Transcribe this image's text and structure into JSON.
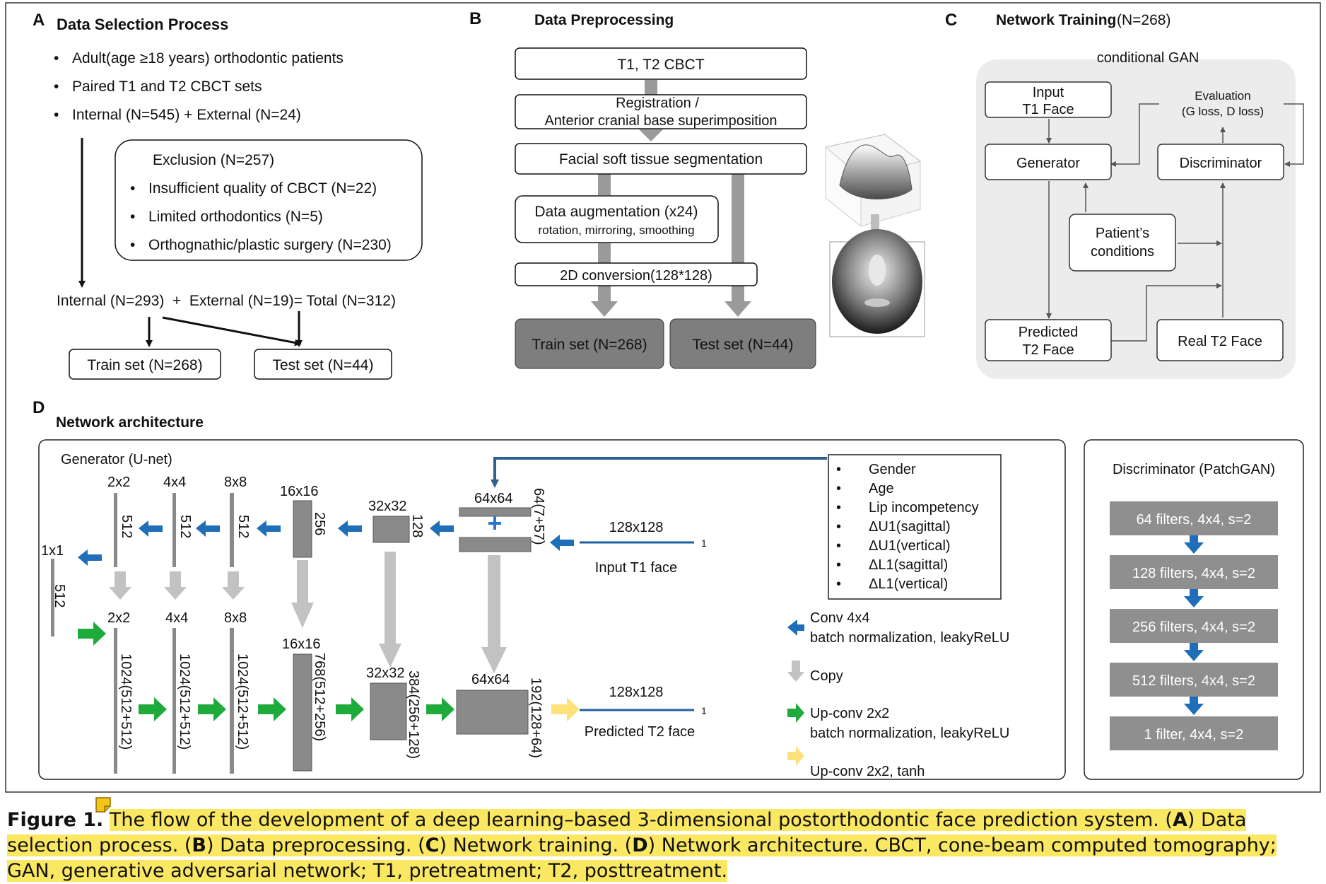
{
  "panelA": {
    "letter": "A",
    "title": "Data Selection Process",
    "bullets": [
      "Adult(age ≥18 years) orthodontic patients",
      "Paired T1 and T2 CBCT sets",
      "Internal (N=545) + External (N=24)"
    ],
    "exclusion_title": "Exclusion (N=257)",
    "exclusion_items": [
      "Insufficient quality of CBCT (N=22)",
      "Limited orthodontics (N=5)",
      "Orthognathic/plastic surgery (N=230)"
    ],
    "total": "Internal (N=293)  +  External (N=19)= Total (N=312)",
    "train": "Train set (N=268)",
    "test": "Test set (N=44)"
  },
  "panelB": {
    "letter": "B",
    "title": "Data Preprocessing",
    "step1": "T1, T2 CBCT",
    "step2a": "Registration /",
    "step2b": "Anterior cranial base superimposition",
    "step3": "Facial soft tissue segmentation",
    "aug1": "Data augmentation (x24)",
    "aug2": "rotation, mirroring, smoothing",
    "conv": "2D conversion(128*128)",
    "train": "Train set (N=268)",
    "test": "Test set (N=44)"
  },
  "panelC": {
    "letter": "C",
    "title": "Network Training",
    "title_n": "(N=268)",
    "gan": "conditional GAN",
    "input1": "Input",
    "input2": "T1 Face",
    "eval1": "Evaluation",
    "eval2": "(G loss, D loss)",
    "generator": "Generator",
    "discriminator": "Discriminator",
    "cond1": "Patient’s",
    "cond2": "conditions",
    "pred1": "Predicted",
    "pred2": "T2 Face",
    "real": "Real T2 Face"
  },
  "panelD": {
    "letter": "D",
    "title": "Network architecture",
    "gen_title": "Generator (U-net)",
    "enc_sizes": [
      "1x1",
      "2x2",
      "4x4",
      "8x8",
      "16x16",
      "32x32",
      "64x64"
    ],
    "enc_channels": [
      "512",
      "512",
      "512",
      "512",
      "256",
      "128",
      "64(7+57)"
    ],
    "dec_sizes": [
      "2x2",
      "4x4",
      "8x8",
      "16x16",
      "32x32",
      "64x64"
    ],
    "dec_channels": [
      "1024(512+512)",
      "1024(512+512)",
      "1024(512+512)",
      "768(512+256)",
      "384(256+128)",
      "192(128+64)"
    ],
    "in_size": "128x128",
    "in_label": "Input T1 face",
    "in_ch": "1",
    "out_size": "128x128",
    "out_label": "Predicted T2 face",
    "out_ch": "1",
    "conditions": [
      "Gender",
      "Age",
      "Lip incompetency",
      "ΔU1(sagittal)",
      "ΔU1(vertical)",
      "ΔL1(sagittal)",
      "ΔL1(vertical)"
    ],
    "legend": {
      "conv1": "Conv 4x4",
      "conv2": "batch normalization, leakyReLU",
      "copy": "Copy",
      "up1": "Up-conv 2x2",
      "up2": "batch normalization, leakyReLU",
      "tanh": "Up-conv 2x2, tanh"
    },
    "disc_title": "Discriminator (PatchGAN)",
    "disc_layers": [
      "64 filters, 4x4, s=2",
      "128 filters, 4x4, s=2",
      "256 filters, 4x4, s=2",
      "512 filters, 4x4, s=2",
      "1 filter, 4x4, s=2"
    ]
  },
  "caption": {
    "label": "Figure 1.",
    "text1": "The flow of the development of a deep learning–based 3-dimensional postorthodontic face prediction system. (",
    "a": "A",
    "text2": ") Data selection process. (",
    "b": "B",
    "text3": ") Data preprocessing. (",
    "c": "C",
    "text4": ") Network training. (",
    "d": "D",
    "text5": ") Network architecture. CBCT, cone-beam computed tomography; GAN, generative adversarial network; T1, pretreatment; T2, posttreatment."
  },
  "colors": {
    "blue": "#1f6fb8",
    "green": "#1faa3c",
    "yellow": "#fde27a",
    "gray": "#8a8a8a",
    "lightgray": "#c0c0c0",
    "panel": "#ececec",
    "dark": "#7e7e7e"
  }
}
